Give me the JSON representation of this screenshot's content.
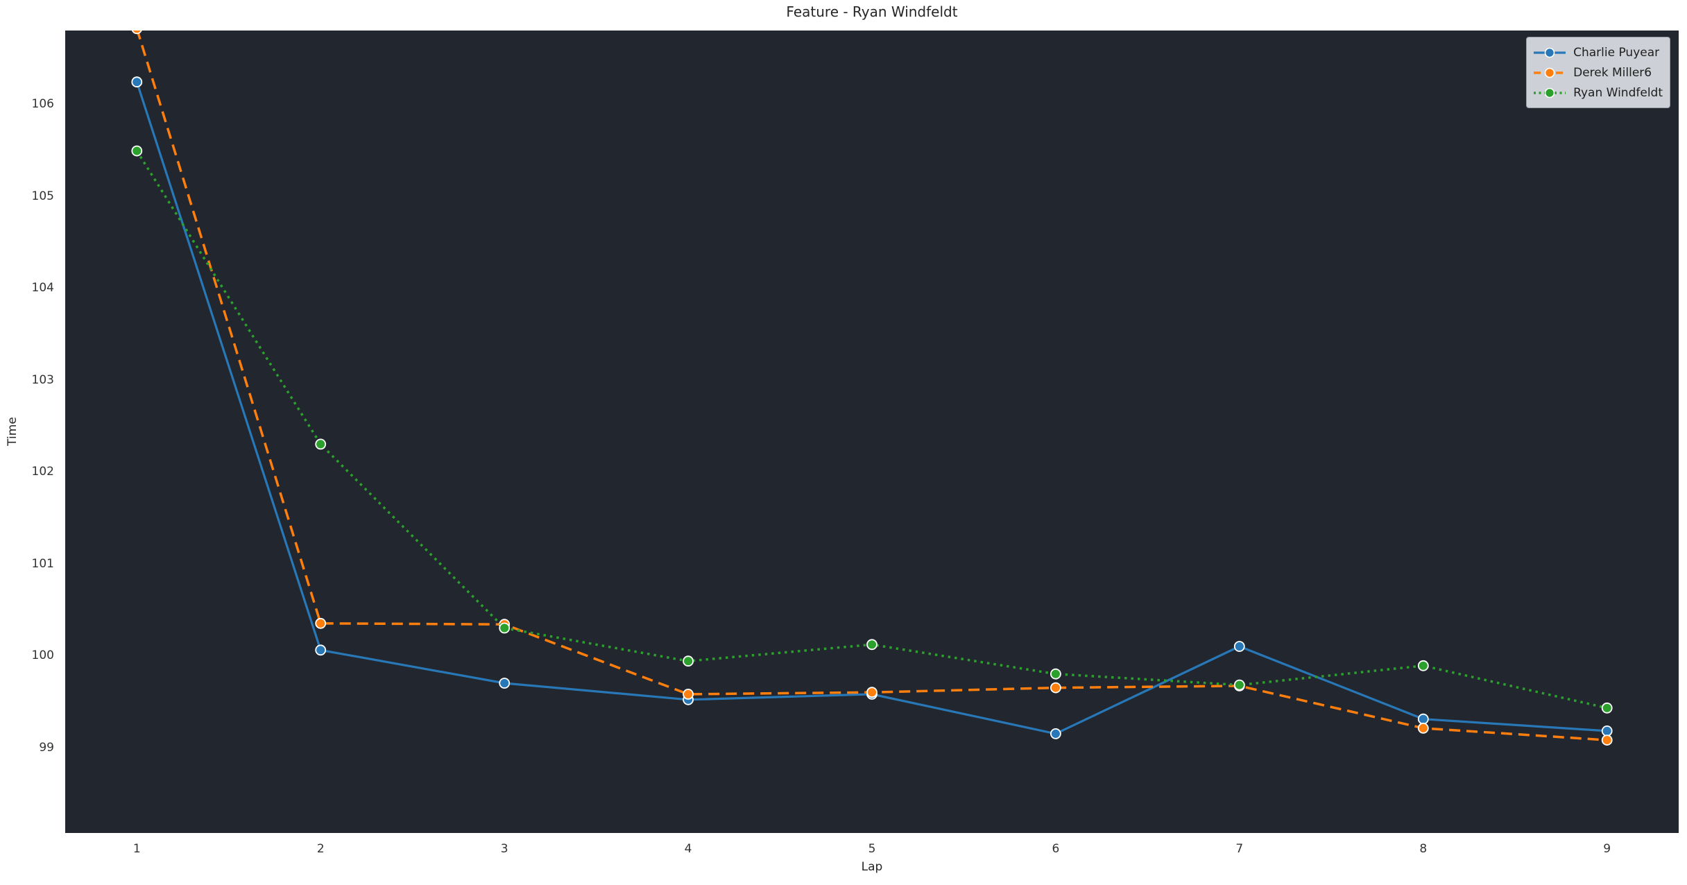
{
  "title": "Feature - Ryan Windfeldt",
  "colors": {
    "figure_bg": "#ffffff",
    "plot_bg": "#22262e",
    "text": "#262626",
    "legend_bg": "#cdd0d6",
    "legend_border": "#969aa4",
    "marker_edge": "#ffffff",
    "series_blue": "#2878b8",
    "series_orange": "#ff7f0e",
    "series_green": "#2ca02c"
  },
  "chart_data": {
    "type": "line",
    "title": "Feature - Ryan Windfeldt",
    "xlabel": "Lap",
    "ylabel": "Time",
    "x": [
      1,
      2,
      3,
      4,
      5,
      6,
      7,
      8,
      9
    ],
    "xticks": [
      1,
      2,
      3,
      4,
      5,
      6,
      7,
      8,
      9
    ],
    "yticks": [
      99,
      100,
      101,
      102,
      103,
      104,
      105,
      106
    ],
    "xlim": [
      0.61,
      9.39
    ],
    "ylim": [
      98.07,
      106.8
    ],
    "grid": false,
    "legend_position": "upper right",
    "series": [
      {
        "name": "Charlie Puyear",
        "color": "#2878b8",
        "style": "solid",
        "marker": "circle",
        "values": [
          106.24,
          100.06,
          99.7,
          99.52,
          99.58,
          99.15,
          100.1,
          99.31,
          99.18
        ]
      },
      {
        "name": "Derek Miller6",
        "color": "#ff7f0e",
        "style": "dashed",
        "marker": "circle",
        "values": [
          106.82,
          100.35,
          100.34,
          99.58,
          99.6,
          99.65,
          99.67,
          99.21,
          99.08
        ]
      },
      {
        "name": "Ryan Windfeldt",
        "color": "#2ca02c",
        "style": "dotted",
        "marker": "circle",
        "values": [
          105.49,
          102.3,
          100.3,
          99.94,
          100.12,
          99.8,
          99.68,
          99.89,
          99.43
        ]
      }
    ]
  }
}
